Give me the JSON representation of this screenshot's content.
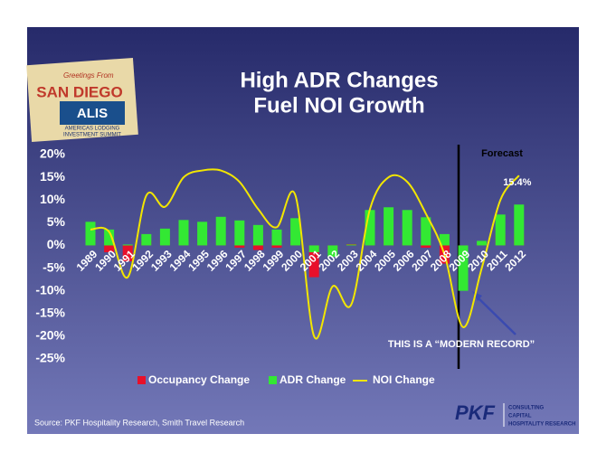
{
  "chart_data": {
    "type": "bar",
    "title": "High ADR Changes",
    "subtitle": "Fuel NOI Growth",
    "categories": [
      "1989",
      "1990",
      "1991",
      "1992",
      "1993",
      "1994",
      "1995",
      "1996",
      "1997",
      "1998",
      "1999",
      "2000",
      "2001",
      "2002",
      "2003",
      "2004",
      "2005",
      "2006",
      "2007",
      "2008",
      "2009",
      "2010",
      "2011",
      "2012"
    ],
    "series": [
      {
        "name": "Occupancy Change",
        "color": "#e8102a",
        "values": [
          1,
          -1.5,
          -3.5,
          1,
          1.5,
          2,
          0.5,
          0.5,
          -0.5,
          -1,
          -0.5,
          1,
          -7,
          -1,
          0.3,
          4,
          3,
          0.5,
          -0.5,
          -4,
          -6,
          0.5,
          2.5,
          2.5
        ]
      },
      {
        "name": "ADR Change",
        "color": "#33e833",
        "values": [
          5.2,
          3.5,
          0.2,
          2.5,
          3.7,
          5.6,
          5.2,
          6.3,
          5.5,
          4.5,
          3.5,
          6,
          -1.5,
          -2.5,
          0.2,
          7.8,
          8.4,
          7.8,
          6.2,
          2.5,
          -10,
          1,
          6.8,
          9
        ]
      },
      {
        "name": "NOI Change",
        "type": "line",
        "color": "#f2e600",
        "values": [
          3.5,
          3,
          -7,
          11,
          8.5,
          15,
          16.5,
          16.5,
          14,
          8,
          4,
          11,
          -20,
          -9,
          -13,
          8,
          15,
          14,
          7,
          -2,
          -18,
          -5,
          10,
          15.4
        ],
        "value_labels": [
          null,
          null,
          null,
          null,
          null,
          null,
          null,
          null,
          null,
          null,
          null,
          null,
          null,
          null,
          null,
          null,
          null,
          null,
          null,
          null,
          null,
          null,
          null,
          "15.4%"
        ]
      }
    ],
    "ylim": [
      -25,
      20
    ],
    "yticks": [
      {
        "value": 20,
        "label": "20%"
      },
      {
        "value": 15,
        "label": "15%"
      },
      {
        "value": 10,
        "label": "10%"
      },
      {
        "value": 5,
        "label": "5%"
      },
      {
        "value": 0,
        "label": "0%"
      },
      {
        "value": -5,
        "label": "-5%"
      },
      {
        "value": -10,
        "label": "-10%"
      },
      {
        "value": -15,
        "label": "-15%"
      },
      {
        "value": -20,
        "label": "-20%"
      },
      {
        "value": -25,
        "label": "-25%"
      }
    ],
    "annotations": [
      "Forecast",
      "THIS IS A “MODERN RECORD”"
    ],
    "source": "Source: PKF Hospitality Research, Smith Travel Research"
  },
  "logos": {
    "postcard": [
      "Greetings From",
      "SAN DIEGO",
      "ALIS",
      "AMERICAS LODGING",
      "INVESTMENT SUMMIT"
    ],
    "pkf": [
      "PKF",
      "CONSULTING",
      "CAPITAL",
      "HOSPITALITY RESEARCH"
    ]
  }
}
